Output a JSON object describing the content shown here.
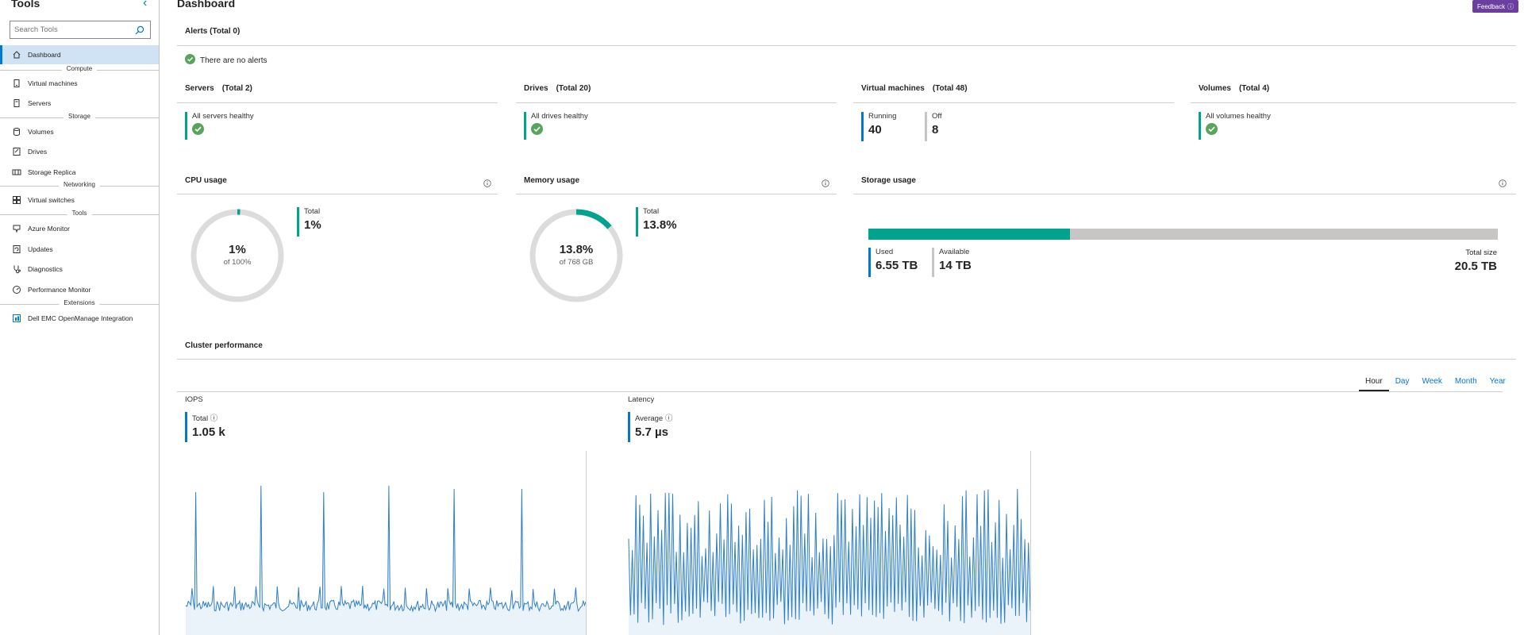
{
  "sidebar": {
    "title": "Tools",
    "search_placeholder": "Search Tools",
    "items": [
      {
        "label": "Dashboard",
        "icon": "home-icon"
      },
      {
        "label": "Virtual machines",
        "icon": "vm-icon"
      },
      {
        "label": "Servers",
        "icon": "server-icon"
      },
      {
        "label": "Volumes",
        "icon": "volume-icon"
      },
      {
        "label": "Drives",
        "icon": "drive-icon"
      },
      {
        "label": "Storage Replica",
        "icon": "replica-icon"
      },
      {
        "label": "Virtual switches",
        "icon": "switch-icon"
      },
      {
        "label": "Azure Monitor",
        "icon": "monitor-icon"
      },
      {
        "label": "Updates",
        "icon": "updates-icon"
      },
      {
        "label": "Diagnostics",
        "icon": "stethoscope-icon"
      },
      {
        "label": "Performance Monitor",
        "icon": "gauge-icon"
      },
      {
        "label": "Dell EMC OpenManage Integration",
        "icon": "extension-icon"
      }
    ],
    "sections": [
      "Compute",
      "Storage",
      "Networking",
      "Tools",
      "Extensions"
    ]
  },
  "header": {
    "title": "Dashboard",
    "feedback_label": "Feedback"
  },
  "alerts": {
    "title": "Alerts",
    "total": "(Total 0)",
    "message": "There are no alerts"
  },
  "servers": {
    "title": "Servers",
    "total": "(Total 2)",
    "status": "All servers healthy"
  },
  "drives": {
    "title": "Drives",
    "total": "(Total 20)",
    "status": "All drives healthy"
  },
  "vms": {
    "title": "Virtual machines",
    "total": "(Total 48)",
    "running_label": "Running",
    "running_value": "40",
    "off_label": "Off",
    "off_value": "8"
  },
  "volumes": {
    "title": "Volumes",
    "total": "(Total 4)",
    "status": "All volumes healthy"
  },
  "cpu": {
    "title": "CPU usage",
    "percent": 1,
    "center_value": "1%",
    "center_sub": "of 100%",
    "total_label": "Total",
    "total_value": "1%"
  },
  "memory": {
    "title": "Memory usage",
    "percent": 13.8,
    "center_value": "13.8%",
    "center_sub": "of 768 GB",
    "total_label": "Total",
    "total_value": "13.8%"
  },
  "storage": {
    "title": "Storage usage",
    "used_fraction": 0.32,
    "used_label": "Used",
    "used_value": "6.55 TB",
    "available_label": "Available",
    "available_value": "14 TB",
    "total_label": "Total size",
    "total_value": "20.5 TB"
  },
  "cluster": {
    "title": "Cluster performance",
    "tabs": [
      "Hour",
      "Day",
      "Week",
      "Month",
      "Year"
    ],
    "active_tab": "Hour",
    "iops": {
      "title": "IOPS",
      "stat_label": "Total",
      "stat_value": "1.05 k"
    },
    "latency": {
      "title": "Latency",
      "stat_label": "Average",
      "stat_value": "5.7 µs"
    }
  },
  "colors": {
    "accent": "#0078d4",
    "teal": "#00a38d",
    "green": "#57a55a",
    "track": "#dcdcdc",
    "line": "#2f7fc8"
  }
}
